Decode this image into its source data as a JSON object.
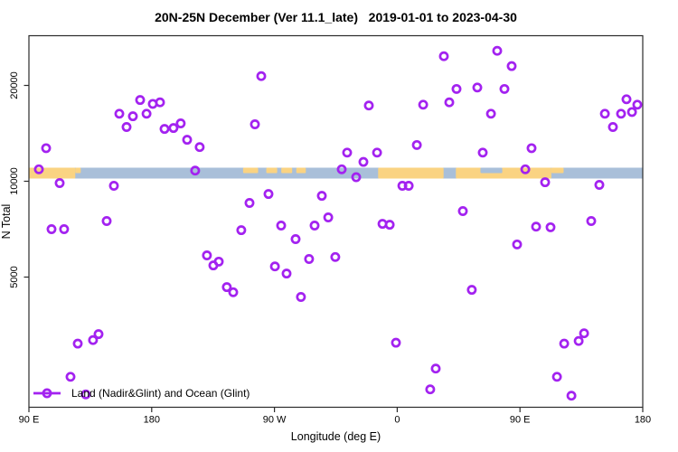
{
  "title": "20N-25N December (Ver 11.1_late)   2019-01-01 to 2023-04-30",
  "legend": {
    "label": "Land (Nadir&Glint) and Ocean (Glint)"
  },
  "chart_data": {
    "type": "scatter",
    "title": "20N-25N December (Ver 11.1_late)   2019-01-01 to 2023-04-30",
    "xlabel": "Longitude (deg E)",
    "ylabel": "N Total",
    "y_scale": "log",
    "x_axis_note": "longitude axis starts at 90E and wraps eastward over 450 degrees",
    "x_ticks": [
      {
        "deg": 0,
        "label": "90 E"
      },
      {
        "deg": 90,
        "label": "180"
      },
      {
        "deg": 180,
        "label": "90 W"
      },
      {
        "deg": 270,
        "label": "0"
      },
      {
        "deg": 360,
        "label": "90 E"
      },
      {
        "deg": 450,
        "label": "180"
      }
    ],
    "y_ticks": [
      {
        "value": 5000,
        "label": "5000"
      },
      {
        "value": 10000,
        "label": "10000"
      },
      {
        "value": 20000,
        "label": "20000"
      }
    ],
    "colors": {
      "marker": "#A322F0",
      "ocean": "#A9BFD9",
      "land": "#FAD382",
      "axis": "#2b2b2b"
    },
    "map_band": {
      "description": "world coastline strip for 20N-25N drawn across the plot near N=10500",
      "land_segments": [
        {
          "a": 0,
          "b": 34,
          "part": "full"
        },
        {
          "a": 34,
          "b": 38,
          "part": "top"
        },
        {
          "a": 157,
          "b": 168,
          "part": "top"
        },
        {
          "a": 174,
          "b": 182,
          "part": "top"
        },
        {
          "a": 185,
          "b": 193,
          "part": "top"
        },
        {
          "a": 196,
          "b": 203,
          "part": "top"
        },
        {
          "a": 256,
          "b": 304,
          "part": "full"
        },
        {
          "a": 313,
          "b": 383,
          "part": "full"
        },
        {
          "a": 383,
          "b": 392,
          "part": "top"
        }
      ],
      "sea_notches": [
        {
          "a": 331,
          "b": 347,
          "part": "top"
        }
      ]
    },
    "points": [
      [
        170.3,
        21400
      ],
      [
        81.5,
        18000
      ],
      [
        90.8,
        17500
      ],
      [
        96.1,
        17700
      ],
      [
        66.3,
        16300
      ],
      [
        76.2,
        16000
      ],
      [
        86.2,
        16300
      ],
      [
        71.6,
        14800
      ],
      [
        99.4,
        14600
      ],
      [
        106.0,
        14700
      ],
      [
        111.3,
        15200
      ],
      [
        165.7,
        15100
      ],
      [
        304.2,
        24700
      ],
      [
        343.3,
        25700
      ],
      [
        353.9,
        23000
      ],
      [
        313.5,
        19500
      ],
      [
        328.7,
        19700
      ],
      [
        348.6,
        19500
      ],
      [
        308.2,
        17700
      ],
      [
        289.0,
        17400
      ],
      [
        249.2,
        17300
      ],
      [
        338.7,
        16300
      ],
      [
        422.2,
        16300
      ],
      [
        434.1,
        16300
      ],
      [
        442.1,
        16500
      ],
      [
        438.1,
        18100
      ],
      [
        446.0,
        17400
      ],
      [
        428.1,
        14800
      ],
      [
        12.6,
        12700
      ],
      [
        7.3,
        10900
      ],
      [
        22.5,
        9870
      ],
      [
        62.3,
        9680
      ],
      [
        121.9,
        10800
      ],
      [
        116.0,
        13500
      ],
      [
        125.2,
        12800
      ],
      [
        161.7,
        8550
      ],
      [
        175.6,
        9120
      ],
      [
        214.7,
        9000
      ],
      [
        219.4,
        7700
      ],
      [
        184.9,
        7260
      ],
      [
        209.4,
        7260
      ],
      [
        57.0,
        7500
      ],
      [
        16.6,
        7070
      ],
      [
        25.8,
        7070
      ],
      [
        233.3,
        12300
      ],
      [
        255.2,
        12300
      ],
      [
        245.2,
        11500
      ],
      [
        229.3,
        10900
      ],
      [
        239.9,
        10300
      ],
      [
        284.4,
        13000
      ],
      [
        332.7,
        12300
      ],
      [
        368.5,
        12700
      ],
      [
        363.9,
        10900
      ],
      [
        378.4,
        9930
      ],
      [
        273.8,
        9680
      ],
      [
        278.4,
        9680
      ],
      [
        418.2,
        9740
      ],
      [
        318.1,
        8060
      ],
      [
        259.2,
        7350
      ],
      [
        264.5,
        7300
      ],
      [
        412.2,
        7500
      ],
      [
        371.8,
        7200
      ],
      [
        382.4,
        7170
      ],
      [
        155.7,
        7020
      ],
      [
        195.5,
        6580
      ],
      [
        130.5,
        5850
      ],
      [
        135.2,
        5440
      ],
      [
        139.2,
        5590
      ],
      [
        180.3,
        5400
      ],
      [
        188.9,
        5130
      ],
      [
        205.4,
        5700
      ],
      [
        224.6,
        5780
      ],
      [
        145.1,
        4650
      ],
      [
        149.8,
        4480
      ],
      [
        199.4,
        4330
      ],
      [
        357.9,
        6330
      ],
      [
        324.7,
        4560
      ],
      [
        35.8,
        3090
      ],
      [
        47.0,
        3170
      ],
      [
        51.0,
        3310
      ],
      [
        30.5,
        2430
      ],
      [
        41.7,
        2140
      ],
      [
        269.1,
        3110
      ],
      [
        298.2,
        2580
      ],
      [
        294.2,
        2220
      ],
      [
        392.4,
        3090
      ],
      [
        403.0,
        3150
      ],
      [
        407.0,
        3330
      ],
      [
        387.1,
        2430
      ],
      [
        397.7,
        2120
      ]
    ]
  }
}
